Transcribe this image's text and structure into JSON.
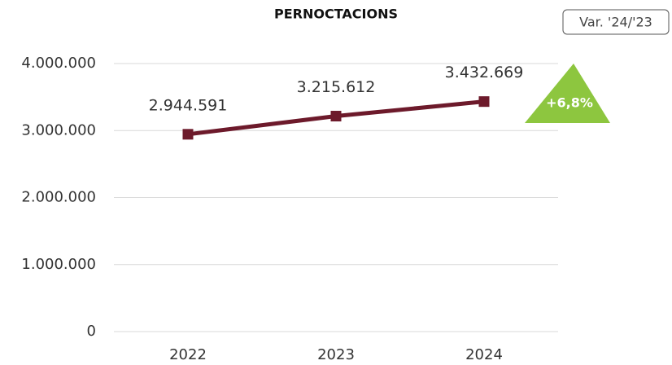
{
  "chart_data": {
    "type": "line",
    "title": "PERNOCTACIONS",
    "categories": [
      "2022",
      "2023",
      "2024"
    ],
    "series": [
      {
        "name": "PERNOCTACIONS",
        "color": "#6d1a2b",
        "values": [
          2944591,
          3215612,
          3432669
        ],
        "value_labels": [
          "2.944.591",
          "3.215.612",
          "3.432.669"
        ]
      }
    ],
    "ylim": [
      0,
      4000000
    ],
    "yticks": [
      0,
      {
        "value": 1000000,
        "label": "1.000.000"
      },
      {
        "value": 2000000,
        "label": "2.000.000"
      },
      {
        "value": 3000000,
        "label": "3.000.000"
      },
      {
        "value": 4000000,
        "label": "4.000.000"
      }
    ],
    "grid": true,
    "annotations": {
      "variation_label": "Var. '24/'23",
      "change_label": "+6,8%",
      "change_color": "#8dc63f"
    }
  }
}
